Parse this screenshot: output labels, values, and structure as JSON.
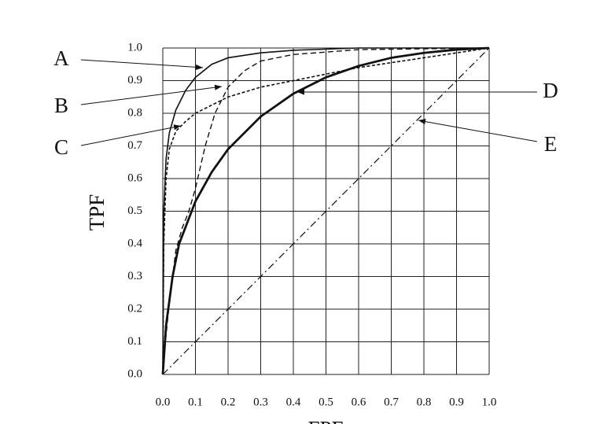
{
  "chart_data": {
    "type": "line",
    "x_label": "FPF",
    "y_label": "TPF",
    "xlim": [
      0,
      1
    ],
    "ylim": [
      0,
      1
    ],
    "xticks": [
      {
        "value": 0,
        "label": "0.0"
      },
      0.1,
      0.2,
      0.3,
      0.4,
      0.5,
      0.6,
      0.7,
      0.8,
      0.9,
      {
        "value": 1,
        "label": "1.0"
      }
    ],
    "yticks": [
      {
        "value": 0,
        "label": "0.0"
      },
      0.1,
      0.2,
      0.3,
      0.4,
      0.5,
      0.6,
      0.7,
      0.8,
      0.9,
      {
        "value": 1,
        "label": "1.0"
      }
    ],
    "grid": true,
    "series": [
      {
        "name": "A",
        "color": "#111",
        "style": "solid",
        "width": 1.6,
        "x": [
          0,
          0.003,
          0.01,
          0.02,
          0.04,
          0.07,
          0.1,
          0.15,
          0.2,
          0.3,
          0.4,
          0.6,
          1
        ],
        "values": [
          0,
          0.5,
          0.66,
          0.74,
          0.81,
          0.87,
          0.91,
          0.95,
          0.97,
          0.985,
          0.993,
          1,
          1
        ]
      },
      {
        "name": "B",
        "color": "#111",
        "style": "dashed",
        "width": 1.4,
        "x": [
          0,
          0.01,
          0.02,
          0.04,
          0.06,
          0.08,
          0.1,
          0.13,
          0.16,
          0.2,
          0.25,
          0.3,
          0.4,
          0.6,
          1
        ],
        "values": [
          0,
          0.12,
          0.22,
          0.38,
          0.45,
          0.5,
          0.57,
          0.7,
          0.8,
          0.88,
          0.93,
          0.96,
          0.98,
          0.995,
          1
        ]
      },
      {
        "name": "C",
        "color": "#111",
        "style": "dotted",
        "width": 1.6,
        "x": [
          0,
          0.003,
          0.01,
          0.02,
          0.04,
          0.07,
          0.1,
          0.2,
          0.3,
          0.4,
          0.5,
          0.6,
          0.7,
          0.8,
          0.9,
          1
        ],
        "values": [
          0,
          0.4,
          0.6,
          0.69,
          0.745,
          0.775,
          0.8,
          0.85,
          0.88,
          0.9,
          0.92,
          0.94,
          0.955,
          0.97,
          0.985,
          1
        ]
      },
      {
        "name": "D",
        "color": "#111",
        "style": "solid",
        "width": 2.8,
        "x": [
          0,
          0.01,
          0.03,
          0.05,
          0.1,
          0.15,
          0.2,
          0.3,
          0.4,
          0.5,
          0.6,
          0.7,
          0.8,
          0.9,
          1
        ],
        "values": [
          0,
          0.15,
          0.3,
          0.4,
          0.53,
          0.62,
          0.69,
          0.79,
          0.86,
          0.91,
          0.945,
          0.97,
          0.985,
          0.995,
          1
        ]
      },
      {
        "name": "E",
        "color": "#111",
        "style": "dashdot",
        "width": 1.2,
        "x": [
          0,
          1
        ],
        "values": [
          0,
          1
        ]
      }
    ]
  }
}
